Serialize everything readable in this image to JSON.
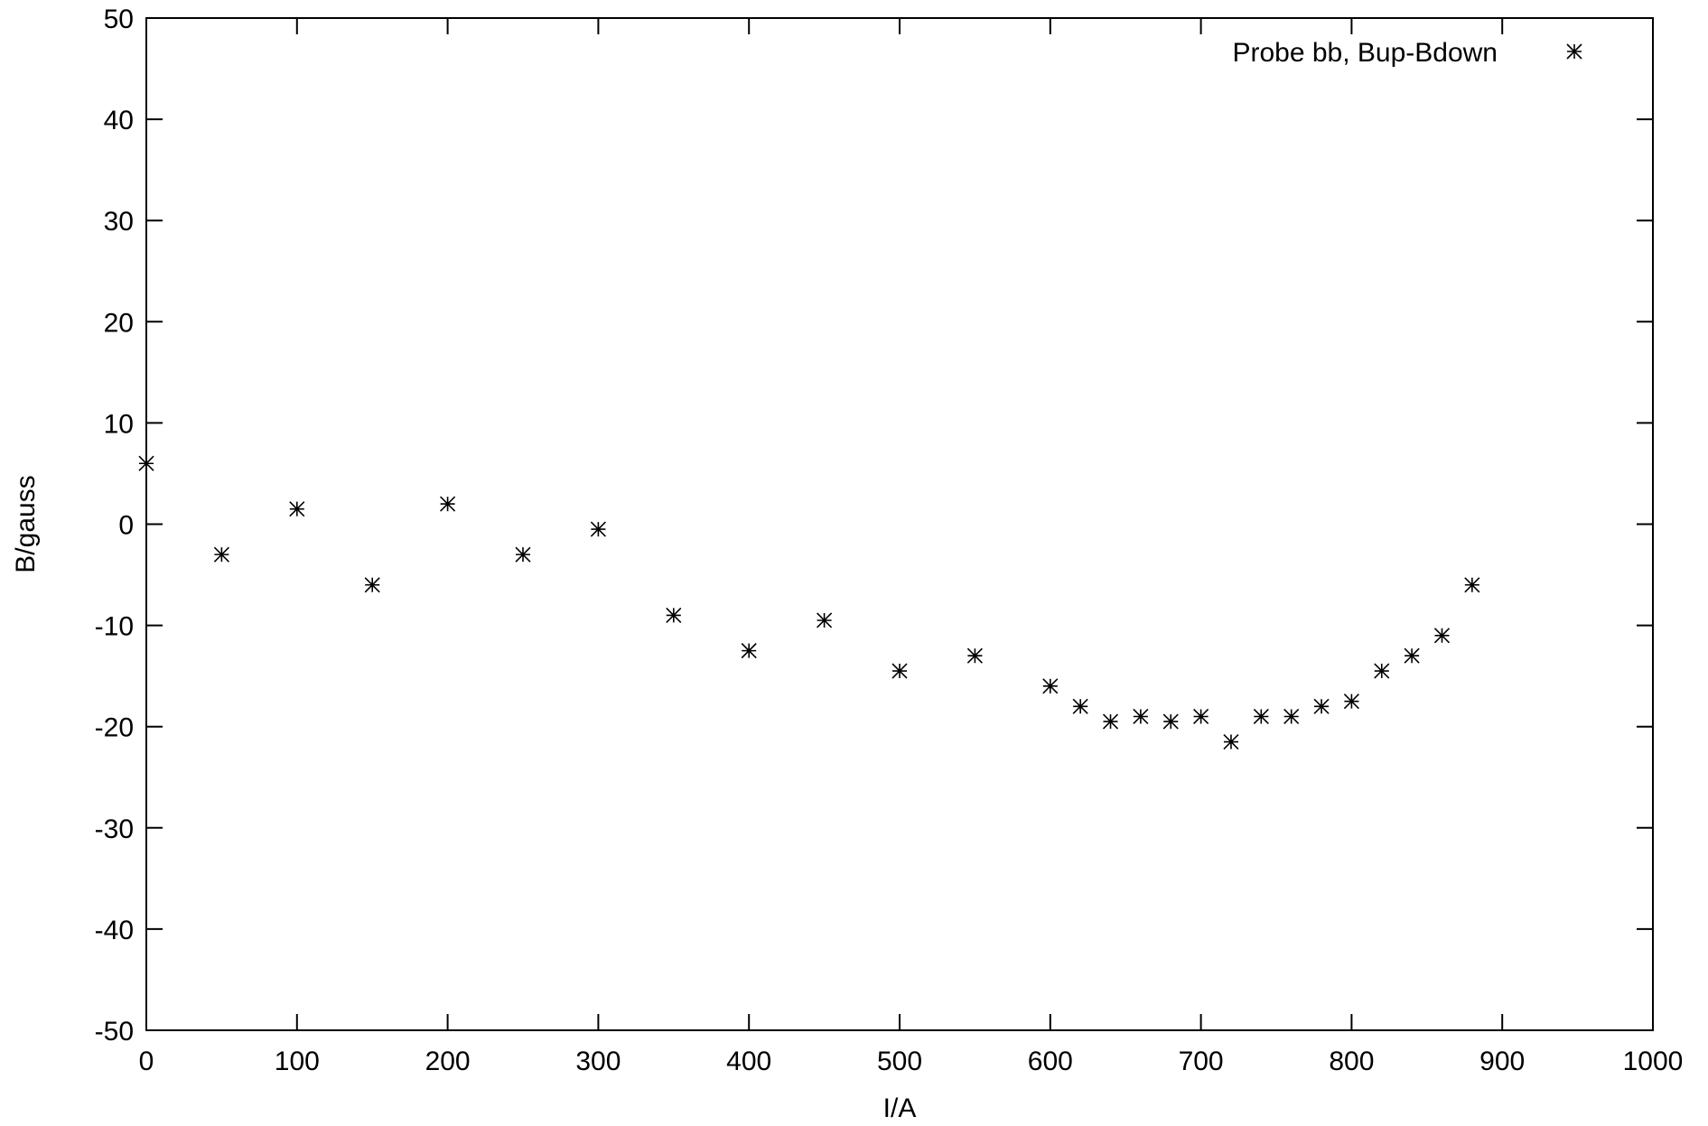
{
  "chart_data": {
    "type": "scatter",
    "xlabel": "I/A",
    "ylabel": "B/gauss",
    "xlim": [
      0,
      1000
    ],
    "ylim": [
      -50,
      50
    ],
    "xticks": [
      "0",
      "100",
      "200",
      "300",
      "400",
      "500",
      "600",
      "700",
      "800",
      "900",
      "1000"
    ],
    "yticks": [
      "-50",
      "-40",
      "-30",
      "-20",
      "-10",
      "0",
      "10",
      "20",
      "30",
      "40",
      "50"
    ],
    "grid": false,
    "legend_position": "top-right",
    "marker": "asterisk",
    "series": [
      {
        "name": "Probe bb, Bup-Bdown",
        "x": [
          0,
          50,
          100,
          150,
          200,
          250,
          300,
          350,
          400,
          450,
          500,
          550,
          600,
          620,
          640,
          660,
          680,
          700,
          720,
          740,
          760,
          780,
          800,
          820,
          840,
          860,
          880
        ],
        "y": [
          6,
          -3,
          1.5,
          -6,
          2,
          -3,
          -0.5,
          -9,
          -12.5,
          -9.5,
          -14.5,
          -13,
          -16,
          -18,
          -19.5,
          -19,
          -19.5,
          -19,
          -21.5,
          -19,
          -19,
          -18,
          -17.5,
          -14.5,
          -13,
          -11,
          -6
        ]
      }
    ]
  }
}
